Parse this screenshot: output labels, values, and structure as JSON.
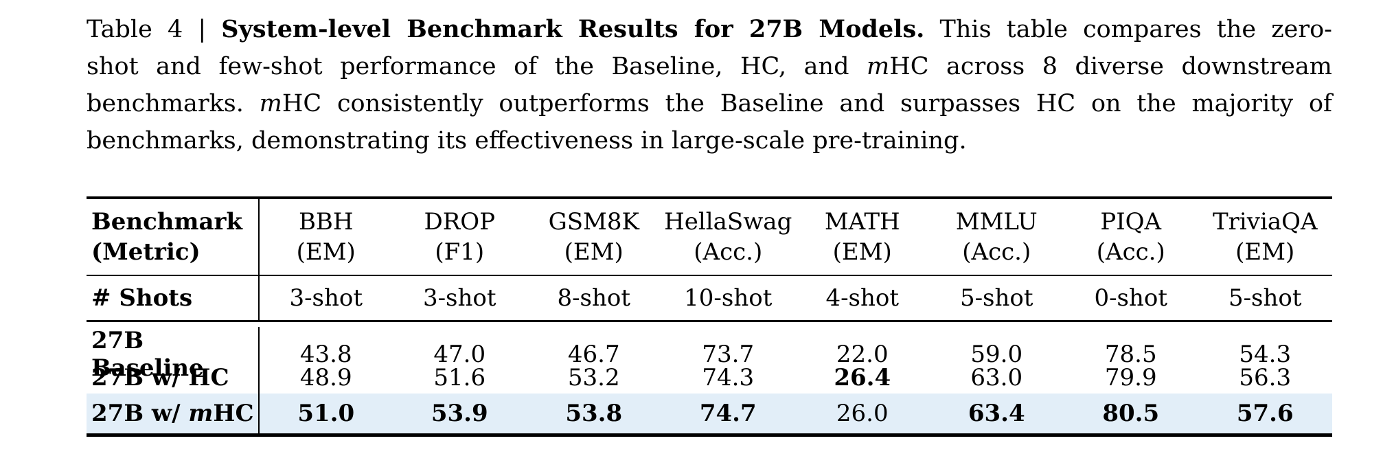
{
  "caption": {
    "lines": [
      [
        {
          "t": "Table 4 | "
        },
        {
          "t": "System-level Benchmark Results for 27B Models.",
          "b": true
        },
        {
          "t": " This table compares the zero-"
        }
      ],
      [
        {
          "t": "shot and few-shot performance of the Baseline, HC, and "
        },
        {
          "t": "m",
          "i": true
        },
        {
          "t": "HC across 8 diverse downstream"
        }
      ],
      [
        {
          "t": "benchmarks. "
        },
        {
          "t": "m",
          "i": true
        },
        {
          "t": "HC consistently outperforms the Baseline and surpasses HC on the majority of"
        }
      ],
      [
        {
          "t": "benchmarks, demonstrating its effectiveness in large-scale pre-training."
        }
      ]
    ]
  },
  "table": {
    "header": {
      "label_line1": "Benchmark",
      "label_line2": "(Metric)",
      "shots_label": "# Shots"
    },
    "columns": [
      {
        "name": "BBH",
        "metric": "(EM)",
        "shots": "3-shot"
      },
      {
        "name": "DROP",
        "metric": "(F1)",
        "shots": "3-shot"
      },
      {
        "name": "GSM8K",
        "metric": "(EM)",
        "shots": "8-shot"
      },
      {
        "name": "HellaSwag",
        "metric": "(Acc.)",
        "shots": "10-shot"
      },
      {
        "name": "MATH",
        "metric": "(EM)",
        "shots": "4-shot"
      },
      {
        "name": "MMLU",
        "metric": "(Acc.)",
        "shots": "5-shot"
      },
      {
        "name": "PIQA",
        "metric": "(Acc.)",
        "shots": "0-shot"
      },
      {
        "name": "TriviaQA",
        "metric": "(EM)",
        "shots": "5-shot"
      }
    ],
    "rows": [
      {
        "label": [
          {
            "t": "27B Baseline",
            "b": true
          }
        ],
        "highlight": false,
        "values": [
          {
            "v": "43.8"
          },
          {
            "v": "47.0"
          },
          {
            "v": "46.7"
          },
          {
            "v": "73.7"
          },
          {
            "v": "22.0"
          },
          {
            "v": "59.0"
          },
          {
            "v": "78.5"
          },
          {
            "v": "54.3"
          }
        ]
      },
      {
        "label": [
          {
            "t": "27B w/ HC",
            "b": true
          }
        ],
        "highlight": false,
        "values": [
          {
            "v": "48.9"
          },
          {
            "v": "51.6"
          },
          {
            "v": "53.2"
          },
          {
            "v": "74.3"
          },
          {
            "v": "26.4",
            "b": true
          },
          {
            "v": "63.0"
          },
          {
            "v": "79.9"
          },
          {
            "v": "56.3"
          }
        ]
      },
      {
        "label": [
          {
            "t": "27B w/ ",
            "b": true
          },
          {
            "t": "m",
            "b": true,
            "i": true
          },
          {
            "t": "HC",
            "b": true
          }
        ],
        "highlight": true,
        "values": [
          {
            "v": "51.0",
            "b": true
          },
          {
            "v": "53.9",
            "b": true
          },
          {
            "v": "53.8",
            "b": true
          },
          {
            "v": "74.7",
            "b": true
          },
          {
            "v": "26.0"
          },
          {
            "v": "63.4",
            "b": true
          },
          {
            "v": "80.5",
            "b": true
          },
          {
            "v": "57.6",
            "b": true
          }
        ]
      }
    ],
    "highlight_color": "#e2eef8",
    "rule_color": "#000000"
  }
}
